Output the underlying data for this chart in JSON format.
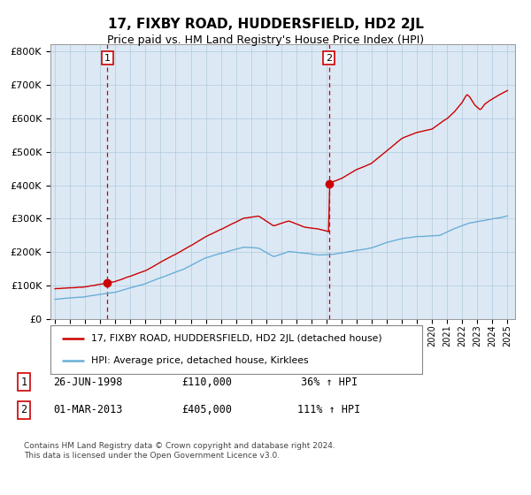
{
  "title": "17, FIXBY ROAD, HUDDERSFIELD, HD2 2JL",
  "subtitle": "Price paid vs. HM Land Registry's House Price Index (HPI)",
  "title_fontsize": 11,
  "subtitle_fontsize": 9,
  "background_color": "#ffffff",
  "plot_bg_color": "#dce9f5",
  "ylabel_values": [
    "£0",
    "£100K",
    "£200K",
    "£300K",
    "£400K",
    "£500K",
    "£600K",
    "£700K",
    "£800K"
  ],
  "ylim": [
    0,
    820000
  ],
  "xlim_start": 1994.7,
  "xlim_end": 2025.5,
  "sale1_date": 1998.48,
  "sale1_price": 110000,
  "sale2_date": 2013.16,
  "sale2_price": 405000,
  "legend_label1": "17, FIXBY ROAD, HUDDERSFIELD, HD2 2JL (detached house)",
  "legend_label2": "HPI: Average price, detached house, Kirklees",
  "note1_num": "1",
  "note1_date": "26-JUN-1998",
  "note1_price": "£110,000",
  "note1_hpi": "36% ↑ HPI",
  "note2_num": "2",
  "note2_date": "01-MAR-2013",
  "note2_price": "£405,000",
  "note2_hpi": "111% ↑ HPI",
  "footer": "Contains HM Land Registry data © Crown copyright and database right 2024.\nThis data is licensed under the Open Government Licence v3.0.",
  "hpi_color": "#6baed6",
  "price_color": "#cc0000",
  "marker_color": "#cc0000",
  "dashed_color": "#cc0000",
  "grid_color": "#b8cfe0"
}
